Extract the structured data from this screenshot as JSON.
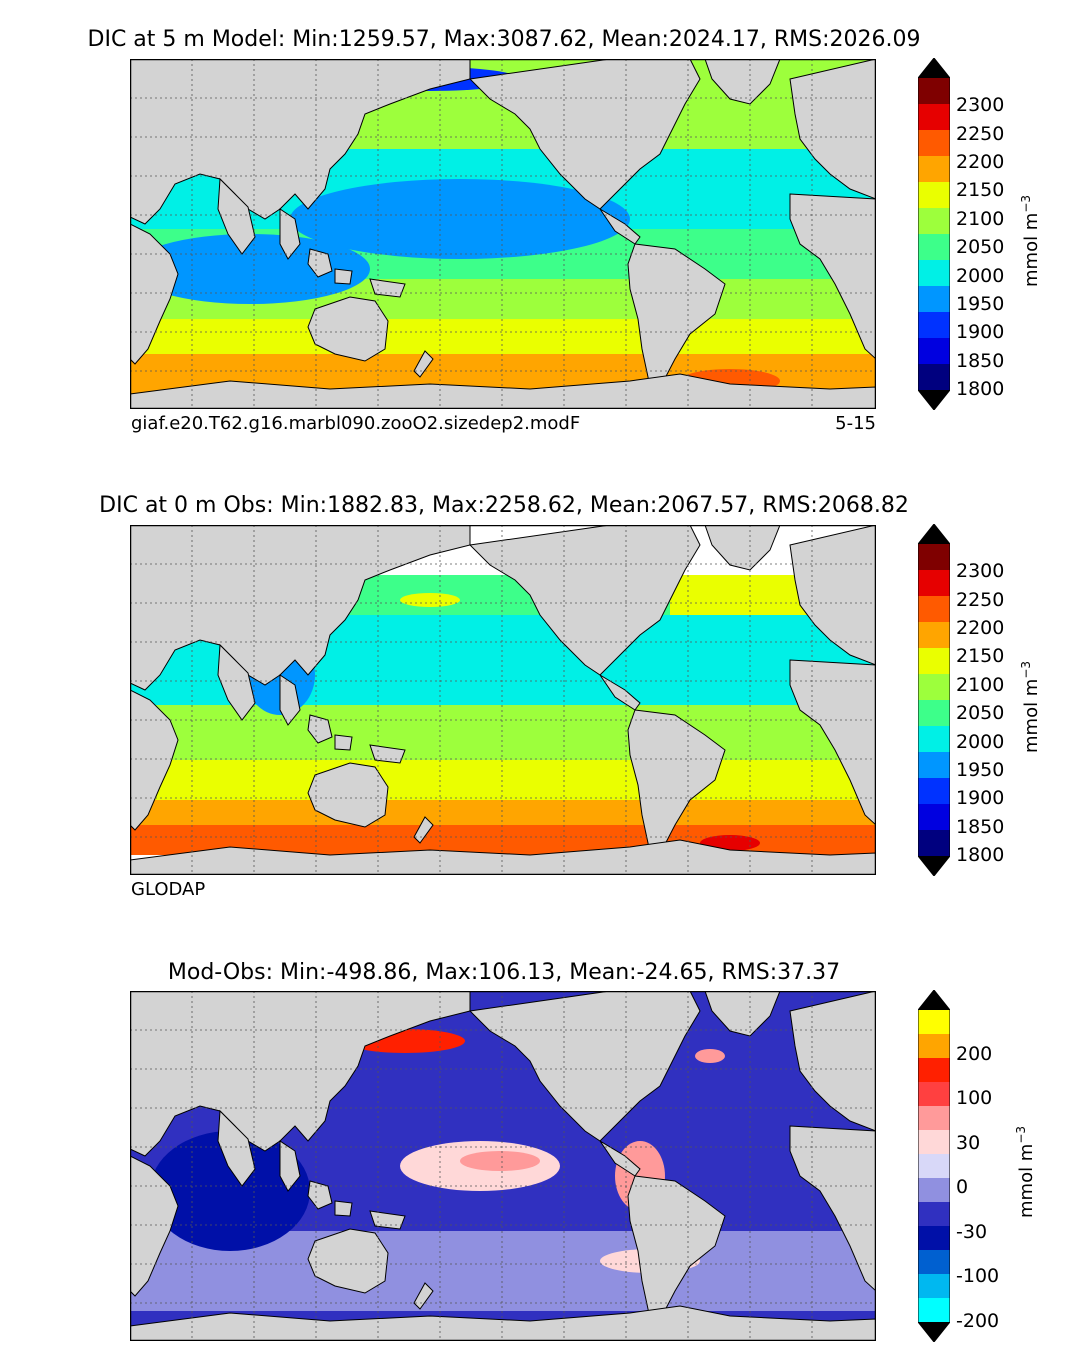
{
  "panels": {
    "model": {
      "title": "DIC at 5 m Model: Min:1259.57, Max:3087.62, Mean:2024.17, RMS:2026.09",
      "run_label": "giaf.e20.T62.g16.marbl090.zooO2.sizedep2.modF",
      "season_label": "5-15"
    },
    "obs": {
      "title": "DIC at 0 m Obs: Min:1882.83, Max:2258.62, Mean:2067.57, RMS:2068.82",
      "source_label": "GLODAP"
    },
    "diff": {
      "title": "Mod-Obs: Min:-498.86, Max:106.13, Mean:-24.65, RMS:37.37"
    }
  },
  "colorbars": {
    "field": {
      "unit_text": "mmol m",
      "unit_exp": "−3",
      "tick_labels": [
        "2300",
        "2250",
        "2200",
        "2150",
        "2100",
        "2050",
        "2000",
        "1950",
        "1900",
        "1850",
        "1800"
      ],
      "colors": [
        "#7f0000",
        "#e60000",
        "#ff5a00",
        "#ffa500",
        "#eaff00",
        "#9dff3c",
        "#3dff8a",
        "#00f0e6",
        "#0096ff",
        "#0032ff",
        "#0000e0",
        "#00007f"
      ],
      "extend_top": "#000000",
      "extend_bottom": "#000000"
    },
    "diff": {
      "unit_text": "mmol m",
      "unit_exp": "−3",
      "tick_labels": [
        "200",
        "100",
        "30",
        "0",
        "-30",
        "-100",
        "-200"
      ],
      "colors": [
        "#ffff00",
        "#ffa500",
        "#ff2000",
        "#ff4040",
        "#ff9a9a",
        "#ffd8d8",
        "#d8d8f8",
        "#9090e0",
        "#3030c0",
        "#0010a8",
        "#0060d0",
        "#00b8f0",
        "#00ffff"
      ],
      "extend_top": "#000000",
      "extend_bottom": "#000000"
    }
  },
  "chart_data": [
    {
      "type": "heatmap",
      "title": "DIC at 5 m Model: Min:1259.57, Max:3087.62, Mean:2024.17, RMS:2026.09",
      "variable": "DIC",
      "depth": "5 m",
      "stats": {
        "min": 1259.57,
        "max": 3087.62,
        "mean": 2024.17,
        "rms": 2026.09
      },
      "levels": [
        1800,
        1850,
        1900,
        1950,
        2000,
        2050,
        2100,
        2150,
        2200,
        2250,
        2300
      ],
      "units": "mmol m−3"
    },
    {
      "type": "heatmap",
      "title": "DIC at 0 m Obs: Min:1882.83, Max:2258.62, Mean:2067.57, RMS:2068.82",
      "variable": "DIC",
      "depth": "0 m",
      "stats": {
        "min": 1882.83,
        "max": 2258.62,
        "mean": 2067.57,
        "rms": 2068.82
      },
      "levels": [
        1800,
        1850,
        1900,
        1950,
        2000,
        2050,
        2100,
        2150,
        2200,
        2250,
        2300
      ],
      "units": "mmol m−3"
    },
    {
      "type": "heatmap",
      "title": "Mod-Obs: Min:-498.86, Max:106.13, Mean:-24.65, RMS:37.37",
      "variable": "DIC difference",
      "stats": {
        "min": -498.86,
        "max": 106.13,
        "mean": -24.65,
        "rms": 37.37
      },
      "levels": [
        -200,
        -100,
        -30,
        0,
        30,
        100,
        200
      ],
      "units": "mmol m−3"
    }
  ]
}
